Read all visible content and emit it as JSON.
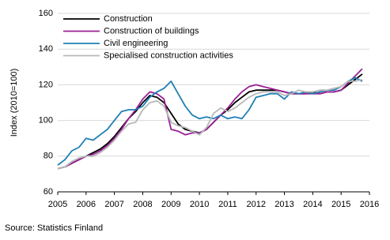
{
  "chart_data": {
    "type": "line",
    "y_label": "Index (2010=100)",
    "source": "Source: Statistics Finland",
    "x": [
      2005,
      2005.25,
      2005.5,
      2005.75,
      2006,
      2006.25,
      2006.5,
      2006.75,
      2007,
      2007.25,
      2007.5,
      2007.75,
      2008,
      2008.25,
      2008.5,
      2008.75,
      2009,
      2009.25,
      2009.5,
      2009.75,
      2010,
      2010.25,
      2010.5,
      2010.75,
      2011,
      2011.25,
      2011.5,
      2011.75,
      2012,
      2012.25,
      2012.5,
      2012.75,
      2013,
      2013.25,
      2013.5,
      2013.75,
      2014,
      2014.25,
      2014.5,
      2014.75,
      2015,
      2015.25,
      2015.5,
      2015.75
    ],
    "series": [
      {
        "name": "Construction",
        "color": "#000000",
        "values": [
          73,
          74,
          76,
          78,
          80,
          82,
          84,
          87,
          91,
          96,
          101,
          105,
          110,
          114,
          113,
          110,
          104,
          98,
          95,
          94,
          93,
          95,
          99,
          103,
          106,
          110,
          113,
          116,
          117,
          117,
          117,
          117,
          116,
          115,
          115,
          115,
          116,
          115,
          116,
          116,
          117,
          120,
          123,
          126
        ]
      },
      {
        "name": "Construction of buildings",
        "color": "#9b1f96",
        "values": [
          73,
          74,
          76,
          78,
          80,
          81,
          83,
          86,
          90,
          95,
          101,
          106,
          112,
          116,
          115,
          112,
          95,
          94,
          92,
          93,
          93,
          95,
          99,
          103,
          107,
          112,
          116,
          119,
          120,
          119,
          118,
          117,
          116,
          115,
          115,
          115,
          115,
          115,
          116,
          116,
          117,
          121,
          125,
          129
        ]
      },
      {
        "name": "Civil engineering",
        "color": "#1f7fb4",
        "values": [
          75,
          78,
          83,
          85,
          90,
          89,
          92,
          95,
          100,
          105,
          106,
          106,
          108,
          113,
          116,
          118,
          122,
          115,
          108,
          103,
          101,
          102,
          101,
          103,
          101,
          102,
          101,
          106,
          113,
          114,
          115,
          115,
          112,
          116,
          115,
          116,
          115,
          116,
          117,
          117,
          119,
          122,
          124,
          122
        ]
      },
      {
        "name": "Specialised construction activities",
        "color": "#b8b8b8",
        "values": [
          73,
          74,
          77,
          79,
          80,
          80,
          82,
          85,
          89,
          94,
          98,
          99,
          106,
          110,
          111,
          108,
          99,
          97,
          96,
          94,
          92,
          96,
          104,
          107,
          105,
          107,
          110,
          113,
          115,
          116,
          116,
          116,
          114,
          115,
          117,
          116,
          116,
          117,
          117,
          118,
          119,
          122,
          122,
          123
        ]
      }
    ],
    "xlim": [
      2005,
      2016
    ],
    "xticks": [
      2005,
      2006,
      2007,
      2008,
      2009,
      2010,
      2011,
      2012,
      2013,
      2014,
      2015,
      2016
    ],
    "ylim": [
      60,
      160
    ],
    "yticks": [
      60,
      80,
      100,
      120,
      140,
      160
    ],
    "grid": true,
    "legend": "top-left"
  }
}
